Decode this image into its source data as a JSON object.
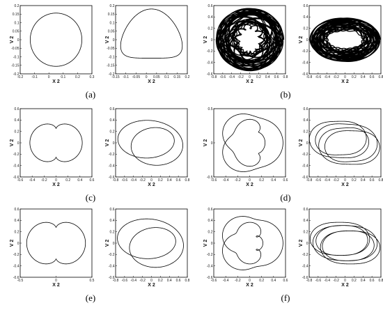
{
  "figure": {
    "panels": [
      {
        "id": "a",
        "caption": "(a)",
        "subplots": [
          {
            "ylabel": "V 2",
            "xlabel": "X 2",
            "yticks": [
              "0.2",
              "0.15",
              "0.1",
              "0.05",
              "0",
              "-0.05",
              "-0.1",
              "-0.15",
              "-0.2"
            ],
            "xticks": [
              "-0.2",
              "-0.1",
              "0",
              "0.1",
              "0.2",
              "0.3"
            ],
            "style": "circle"
          },
          {
            "ylabel": "V 2",
            "xlabel": "X 2",
            "yticks": [
              "0.2",
              "0.15",
              "0.1",
              "0.05",
              "0",
              "-0.05",
              "-0.1",
              "-0.15",
              "-0.2"
            ],
            "xticks": [
              "-0.15",
              "-0.1",
              "-0.05",
              "0",
              "0.05",
              "0.1",
              "0.15",
              "0.2"
            ],
            "style": "pear"
          }
        ]
      },
      {
        "id": "b",
        "caption": "(b)",
        "subplots": [
          {
            "ylabel": "V 2",
            "xlabel": "X 2",
            "yticks": [
              "0.6",
              "0.4",
              "0.2",
              "0",
              "-0.2",
              "-0.4",
              "-0.6"
            ],
            "xticks": [
              "-0.8",
              "-0.6",
              "-0.4",
              "-0.2",
              "0",
              "0.2",
              "0.4",
              "0.6",
              "0.8"
            ],
            "style": "chaos-heart"
          },
          {
            "ylabel": "V 2",
            "xlabel": "X 2",
            "yticks": [
              "0.6",
              "0.4",
              "0.2",
              "0",
              "-0.2",
              "-0.4",
              "-0.6"
            ],
            "xticks": [
              "-0.8",
              "-0.6",
              "-0.4",
              "-0.2",
              "0",
              "0.2",
              "0.4",
              "0.6",
              "0.8"
            ],
            "style": "chaos-ellipse"
          }
        ]
      },
      {
        "id": "c",
        "caption": "(c)",
        "subplots": [
          {
            "ylabel": "V 2",
            "xlabel": "X 2",
            "yticks": [
              "0.6",
              "0.4",
              "0.2",
              "0",
              "-0.2",
              "-0.4",
              "-0.6"
            ],
            "xticks": [
              "-0.6",
              "-0.4",
              "-0.2",
              "0",
              "0.2",
              "0.4",
              "0.6"
            ],
            "style": "loops2"
          },
          {
            "ylabel": "V 2",
            "xlabel": "X 2",
            "yticks": [
              "0.6",
              "0.4",
              "0.2",
              "0",
              "-0.2",
              "-0.4",
              "-0.6"
            ],
            "xticks": [
              "-0.8",
              "-0.6",
              "-0.4",
              "-0.2",
              "0",
              "0.2",
              "0.4",
              "0.6",
              "0.8"
            ],
            "style": "ellipses2"
          }
        ]
      },
      {
        "id": "d",
        "caption": "(d)",
        "subplots": [
          {
            "ylabel": "V 2",
            "xlabel": "X 2",
            "yticks": [
              "0.5",
              "0",
              "-0.5"
            ],
            "xticks": [
              "-0.6",
              "-0.4",
              "-0.2",
              "0",
              "0.2",
              "0.4",
              "0.6"
            ],
            "style": "multi-loop"
          },
          {
            "ylabel": "V 2",
            "xlabel": "X 2",
            "yticks": [
              "0.6",
              "0.4",
              "0.2",
              "0",
              "-0.2",
              "-0.4",
              "-0.6"
            ],
            "xticks": [
              "-0.8",
              "-0.6",
              "-0.4",
              "-0.2",
              "0",
              "0.2",
              "0.4",
              "0.6",
              "0.8"
            ],
            "style": "ellipses4"
          }
        ]
      },
      {
        "id": "e",
        "caption": "(e)",
        "subplots": [
          {
            "ylabel": "V 2",
            "xlabel": "X 2",
            "yticks": [
              "0.6",
              "0.4",
              "0.2",
              "0",
              "-0.2",
              "-0.4",
              "-0.6"
            ],
            "xticks": [
              "-0.5",
              "0",
              "0.5"
            ],
            "style": "loops2b"
          },
          {
            "ylabel": "V 2",
            "xlabel": "X 2",
            "yticks": [
              "0.6",
              "0.4",
              "0.2",
              "0",
              "-0.2",
              "-0.4",
              "-0.6"
            ],
            "xticks": [
              "-0.8",
              "-0.6",
              "-0.4",
              "-0.2",
              "0",
              "0.2",
              "0.4",
              "0.6",
              "0.8"
            ],
            "style": "ellipses2b"
          }
        ]
      },
      {
        "id": "f",
        "caption": "(f)",
        "subplots": [
          {
            "ylabel": "V 2",
            "xlabel": "X 2",
            "yticks": [
              "0.6",
              "0.4",
              "0.2",
              "0",
              "-0.2",
              "-0.4",
              "-0.6"
            ],
            "xticks": [
              "-0.6",
              "-0.4",
              "-0.2",
              "0",
              "0.2",
              "0.4",
              "0.6"
            ],
            "style": "multi-loop2"
          },
          {
            "ylabel": "V 2",
            "xlabel": "X 2",
            "yticks": [
              "0.6",
              "0.4",
              "0.2",
              "0",
              "-0.2",
              "-0.4",
              "-0.6"
            ],
            "xticks": [
              "-0.8",
              "-0.6",
              "-0.4",
              "-0.2",
              "0",
              "0.2",
              "0.4",
              "0.6",
              "0.8"
            ],
            "style": "ellipses5"
          }
        ]
      }
    ]
  }
}
